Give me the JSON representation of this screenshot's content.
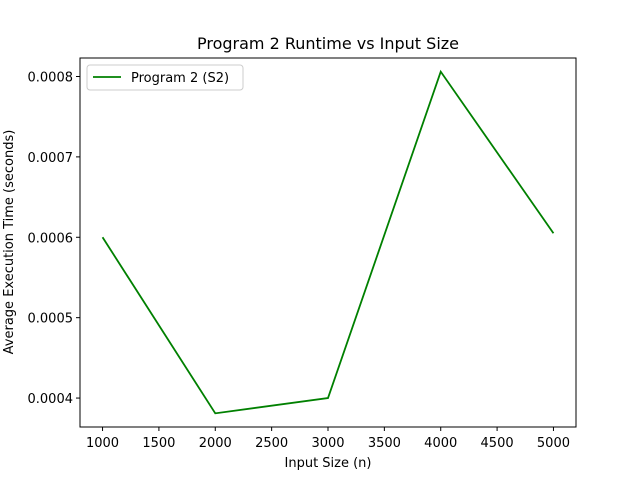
{
  "chart_data": {
    "type": "line",
    "title": "Program 2 Runtime vs Input Size",
    "xlabel": "Input Size (n)",
    "ylabel": "Average Execution Time (seconds)",
    "x": [
      1000,
      2000,
      3000,
      4000,
      5000
    ],
    "series": [
      {
        "name": "Program 2 (S2)",
        "color": "#008000",
        "values": [
          0.0006,
          0.000381,
          0.0004,
          0.000806,
          0.000605
        ]
      }
    ],
    "xlim": [
      800,
      5200
    ],
    "ylim": [
      0.000364,
      0.000823
    ],
    "xticks": [
      1000,
      1500,
      2000,
      2500,
      3000,
      3500,
      4000,
      4500,
      5000
    ],
    "xtick_labels": [
      "1000",
      "1500",
      "2000",
      "2500",
      "3000",
      "3500",
      "4000",
      "4500",
      "5000"
    ],
    "yticks": [
      0.0004,
      0.0005,
      0.0006,
      0.0007,
      0.0008
    ],
    "ytick_labels": [
      "0.0004",
      "0.0005",
      "0.0006",
      "0.0007",
      "0.0008"
    ],
    "grid": false,
    "legend_position": "top-left"
  }
}
